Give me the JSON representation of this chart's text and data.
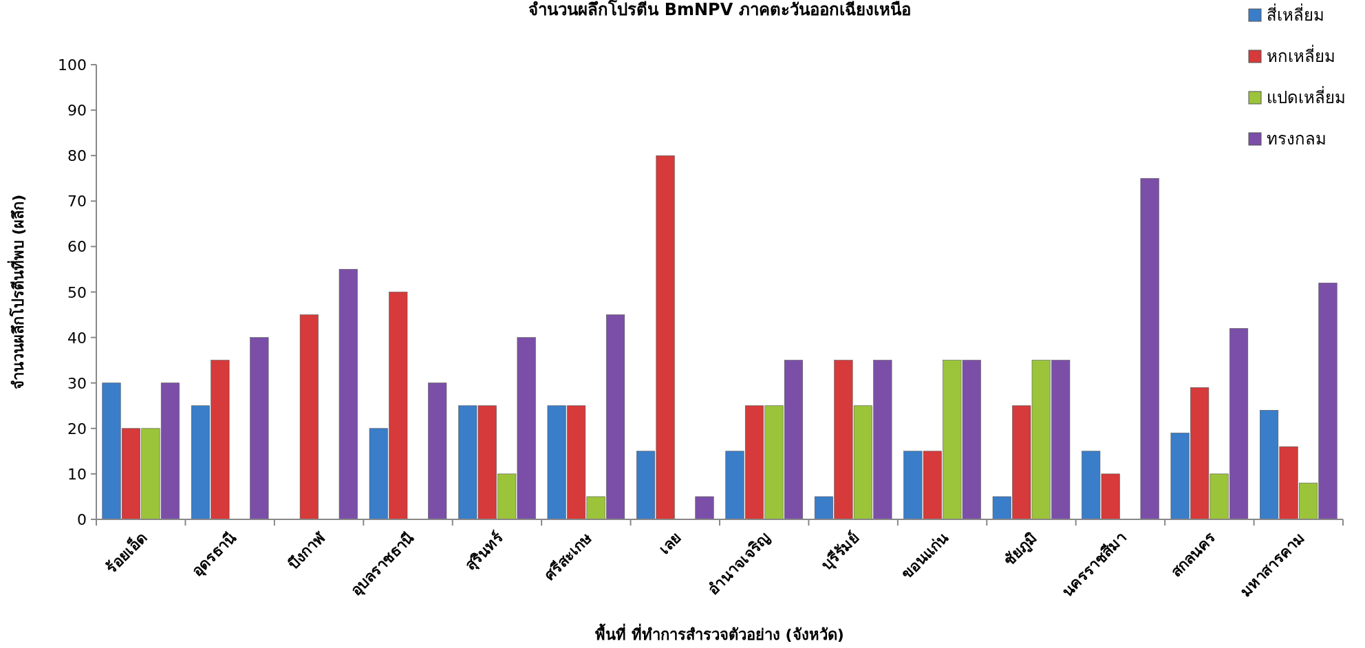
{
  "chart_data": {
    "type": "bar",
    "title": "จำนวนผลึกโปรตีน  BmNPV ภาคตะวันออกเฉียงเหนือ",
    "xlabel": "พื้นที่ ที่ทำการสำรวจตัวอย่าง (จังหวัด)",
    "ylabel": "จำนวนผลึกโปรตีนที่พบ (ผลึก)",
    "categories": [
      "ร้อยเอ็ด",
      "อุดรธานี",
      "บึงกาฬ",
      "อุบลราชธานี",
      "สุรินทร์",
      "ศรีสะเกษ",
      "เลย",
      "อำนาจเจริญ",
      "บุรีรัมย์",
      "ขอนแก่น",
      "ชัยภูมิ",
      "นครราชสีมา",
      "สกลนคร",
      "มหาสารคาม"
    ],
    "series": [
      {
        "name": "สี่เหลี่ยม",
        "color": "#3a7dc9",
        "values": [
          30,
          25,
          0,
          20,
          25,
          25,
          15,
          15,
          5,
          15,
          5,
          15,
          19,
          24
        ]
      },
      {
        "name": "หกเหลี่ยม",
        "color": "#d63a3a",
        "values": [
          20,
          35,
          45,
          50,
          25,
          25,
          80,
          25,
          35,
          15,
          25,
          10,
          29,
          16
        ]
      },
      {
        "name": "แปดเหลี่ยม",
        "color": "#9bc43a",
        "values": [
          20,
          0,
          0,
          0,
          10,
          5,
          0,
          25,
          25,
          35,
          35,
          0,
          10,
          8
        ]
      },
      {
        "name": "ทรงกลม",
        "color": "#7b4fa8",
        "values": [
          30,
          40,
          55,
          30,
          40,
          45,
          5,
          35,
          35,
          35,
          35,
          75,
          42,
          52
        ]
      }
    ],
    "ylim": [
      0,
      100
    ],
    "yticks": [
      0,
      10,
      20,
      30,
      40,
      50,
      60,
      70,
      80,
      90,
      100
    ],
    "grid": false,
    "legend": "top right"
  }
}
